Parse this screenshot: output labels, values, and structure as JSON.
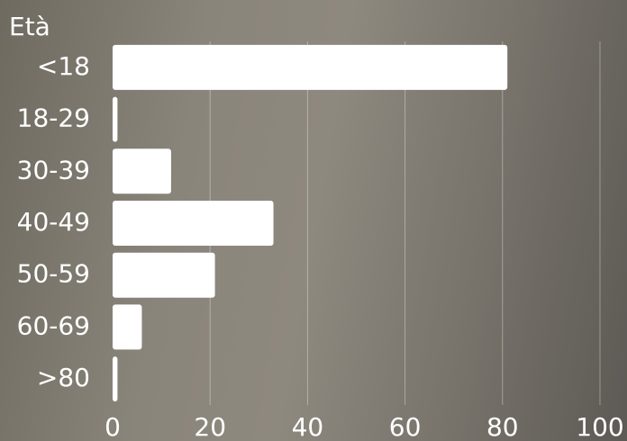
{
  "chart_data": {
    "type": "hbar",
    "title": "Età",
    "categories": [
      "<18",
      "18-29",
      "30-39",
      "40-49",
      "50-59",
      "60-69",
      ">80"
    ],
    "values": [
      81,
      1,
      12,
      33,
      21,
      6,
      1
    ],
    "color": "#ffffff",
    "xlim": [
      0,
      100
    ],
    "xticks": [
      0,
      20,
      40,
      60,
      80,
      100
    ],
    "grid": true
  }
}
